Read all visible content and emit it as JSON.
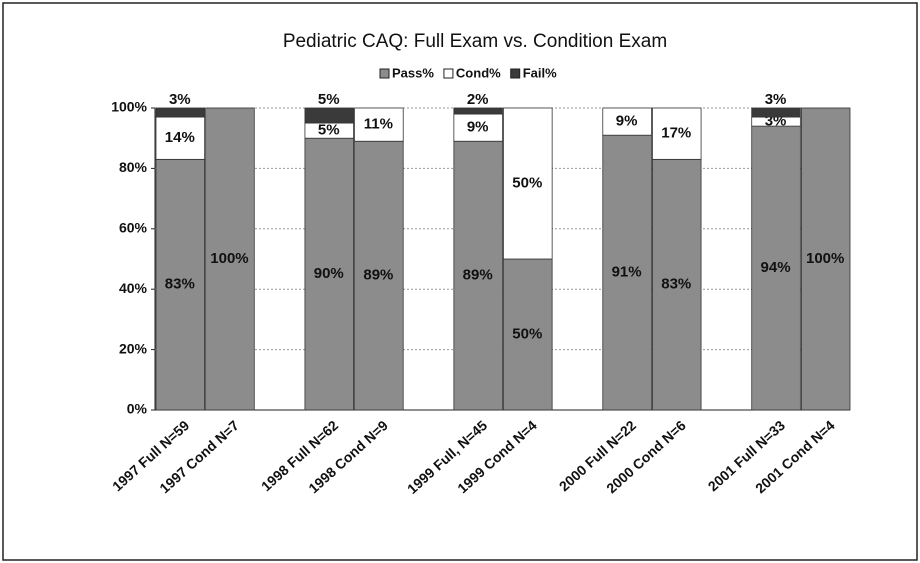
{
  "chart_data": {
    "type": "stacked_bar",
    "title": "Pediatric CAQ: Full Exam vs. Condition Exam",
    "categories": [
      "1997 Full N=59",
      "1997 Cond N=7",
      null,
      "1998 Full N=62",
      "1998 Cond N=9",
      null,
      "1999 Full, N=45",
      "1999 Cond N=4",
      null,
      "2000 Full N=22",
      "2000 Cond N=6",
      null,
      "2001 Full N=33",
      "2001 Cond N=4"
    ],
    "series": [
      {
        "name": "Pass%",
        "color": "#8c8c8c",
        "values": [
          83,
          100,
          null,
          90,
          89,
          null,
          89,
          50,
          null,
          91,
          83,
          null,
          94,
          100
        ],
        "value_labels": [
          "83%",
          "100%",
          null,
          "90%",
          "89%",
          null,
          "89%",
          "50%",
          null,
          "91%",
          "83%",
          null,
          "94%",
          "100%"
        ]
      },
      {
        "name": "Cond%",
        "color": "#ffffff",
        "values": [
          14,
          0,
          null,
          5,
          11,
          null,
          9,
          50,
          null,
          9,
          17,
          null,
          3,
          0
        ],
        "value_labels": [
          "14%",
          null,
          null,
          "5%",
          "11%",
          null,
          "9%",
          "50%",
          null,
          "9%",
          "17%",
          null,
          "3%",
          null
        ]
      },
      {
        "name": "Fail%",
        "color": "#3a3a3a",
        "values": [
          3,
          0,
          null,
          5,
          0,
          null,
          2,
          0,
          null,
          0,
          0,
          null,
          3,
          0
        ],
        "value_labels": [
          "3%",
          null,
          null,
          "5%",
          null,
          null,
          "2%",
          null,
          null,
          null,
          null,
          null,
          "3%",
          null
        ]
      }
    ],
    "ylim": [
      0,
      100
    ],
    "yticks": [
      {
        "value": 0,
        "label": "0%"
      },
      {
        "value": 20,
        "label": "20%"
      },
      {
        "value": 40,
        "label": "40%"
      },
      {
        "value": 60,
        "label": "60%"
      },
      {
        "value": 80,
        "label": "80%"
      },
      {
        "value": 100,
        "label": "100%"
      }
    ],
    "grid": true,
    "legend": "top"
  }
}
